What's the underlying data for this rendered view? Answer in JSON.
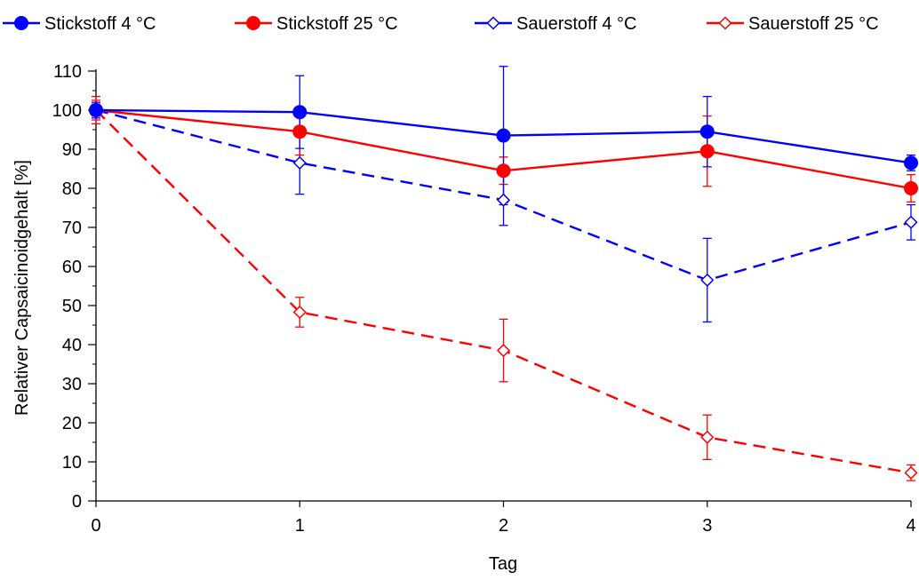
{
  "chart_data": {
    "type": "line",
    "xlabel": "Tag",
    "ylabel": "Relativer Capsaicinoidgehalt  [%]",
    "xlim": [
      0,
      4
    ],
    "ylim": [
      0,
      110
    ],
    "x_ticks": [
      "0",
      "1",
      "2",
      "3",
      "4"
    ],
    "y_ticks": [
      "0",
      "10",
      "20",
      "30",
      "40",
      "50",
      "60",
      "70",
      "80",
      "90",
      "100",
      "110"
    ],
    "grid": false,
    "legend_position": "top",
    "x": [
      0,
      1,
      2,
      3,
      4
    ],
    "series": [
      {
        "name": "Stickstoff 4 °C",
        "color": "#0000ff",
        "marker": "filled-circle",
        "line_style": "solid",
        "values": [
          100,
          99.5,
          93.5,
          94.5,
          86.5
        ],
        "error": [
          2,
          9.3,
          17.7,
          9,
          2
        ]
      },
      {
        "name": "Stickstoff 25 °C",
        "color": "#ff0000",
        "marker": "filled-circle",
        "line_style": "solid",
        "values": [
          100,
          94.5,
          84.5,
          89.5,
          80
        ],
        "error": [
          3.5,
          6,
          3.5,
          9,
          3.5
        ]
      },
      {
        "name": "Sauerstoff 4 °C",
        "color": "#0000ff",
        "marker": "open-diamond",
        "line_style": "dashed",
        "values": [
          100,
          86.5,
          77,
          56.5,
          71.3
        ],
        "error": [
          1.5,
          8,
          6.5,
          10.7,
          4.5
        ]
      },
      {
        "name": "Sauerstoff 25 °C",
        "color": "#ff0000",
        "marker": "open-diamond",
        "line_style": "dashed",
        "values": [
          100,
          48.3,
          38.5,
          16.3,
          7.2
        ],
        "error": [
          2.5,
          3.8,
          8,
          5.7,
          2
        ]
      }
    ]
  }
}
